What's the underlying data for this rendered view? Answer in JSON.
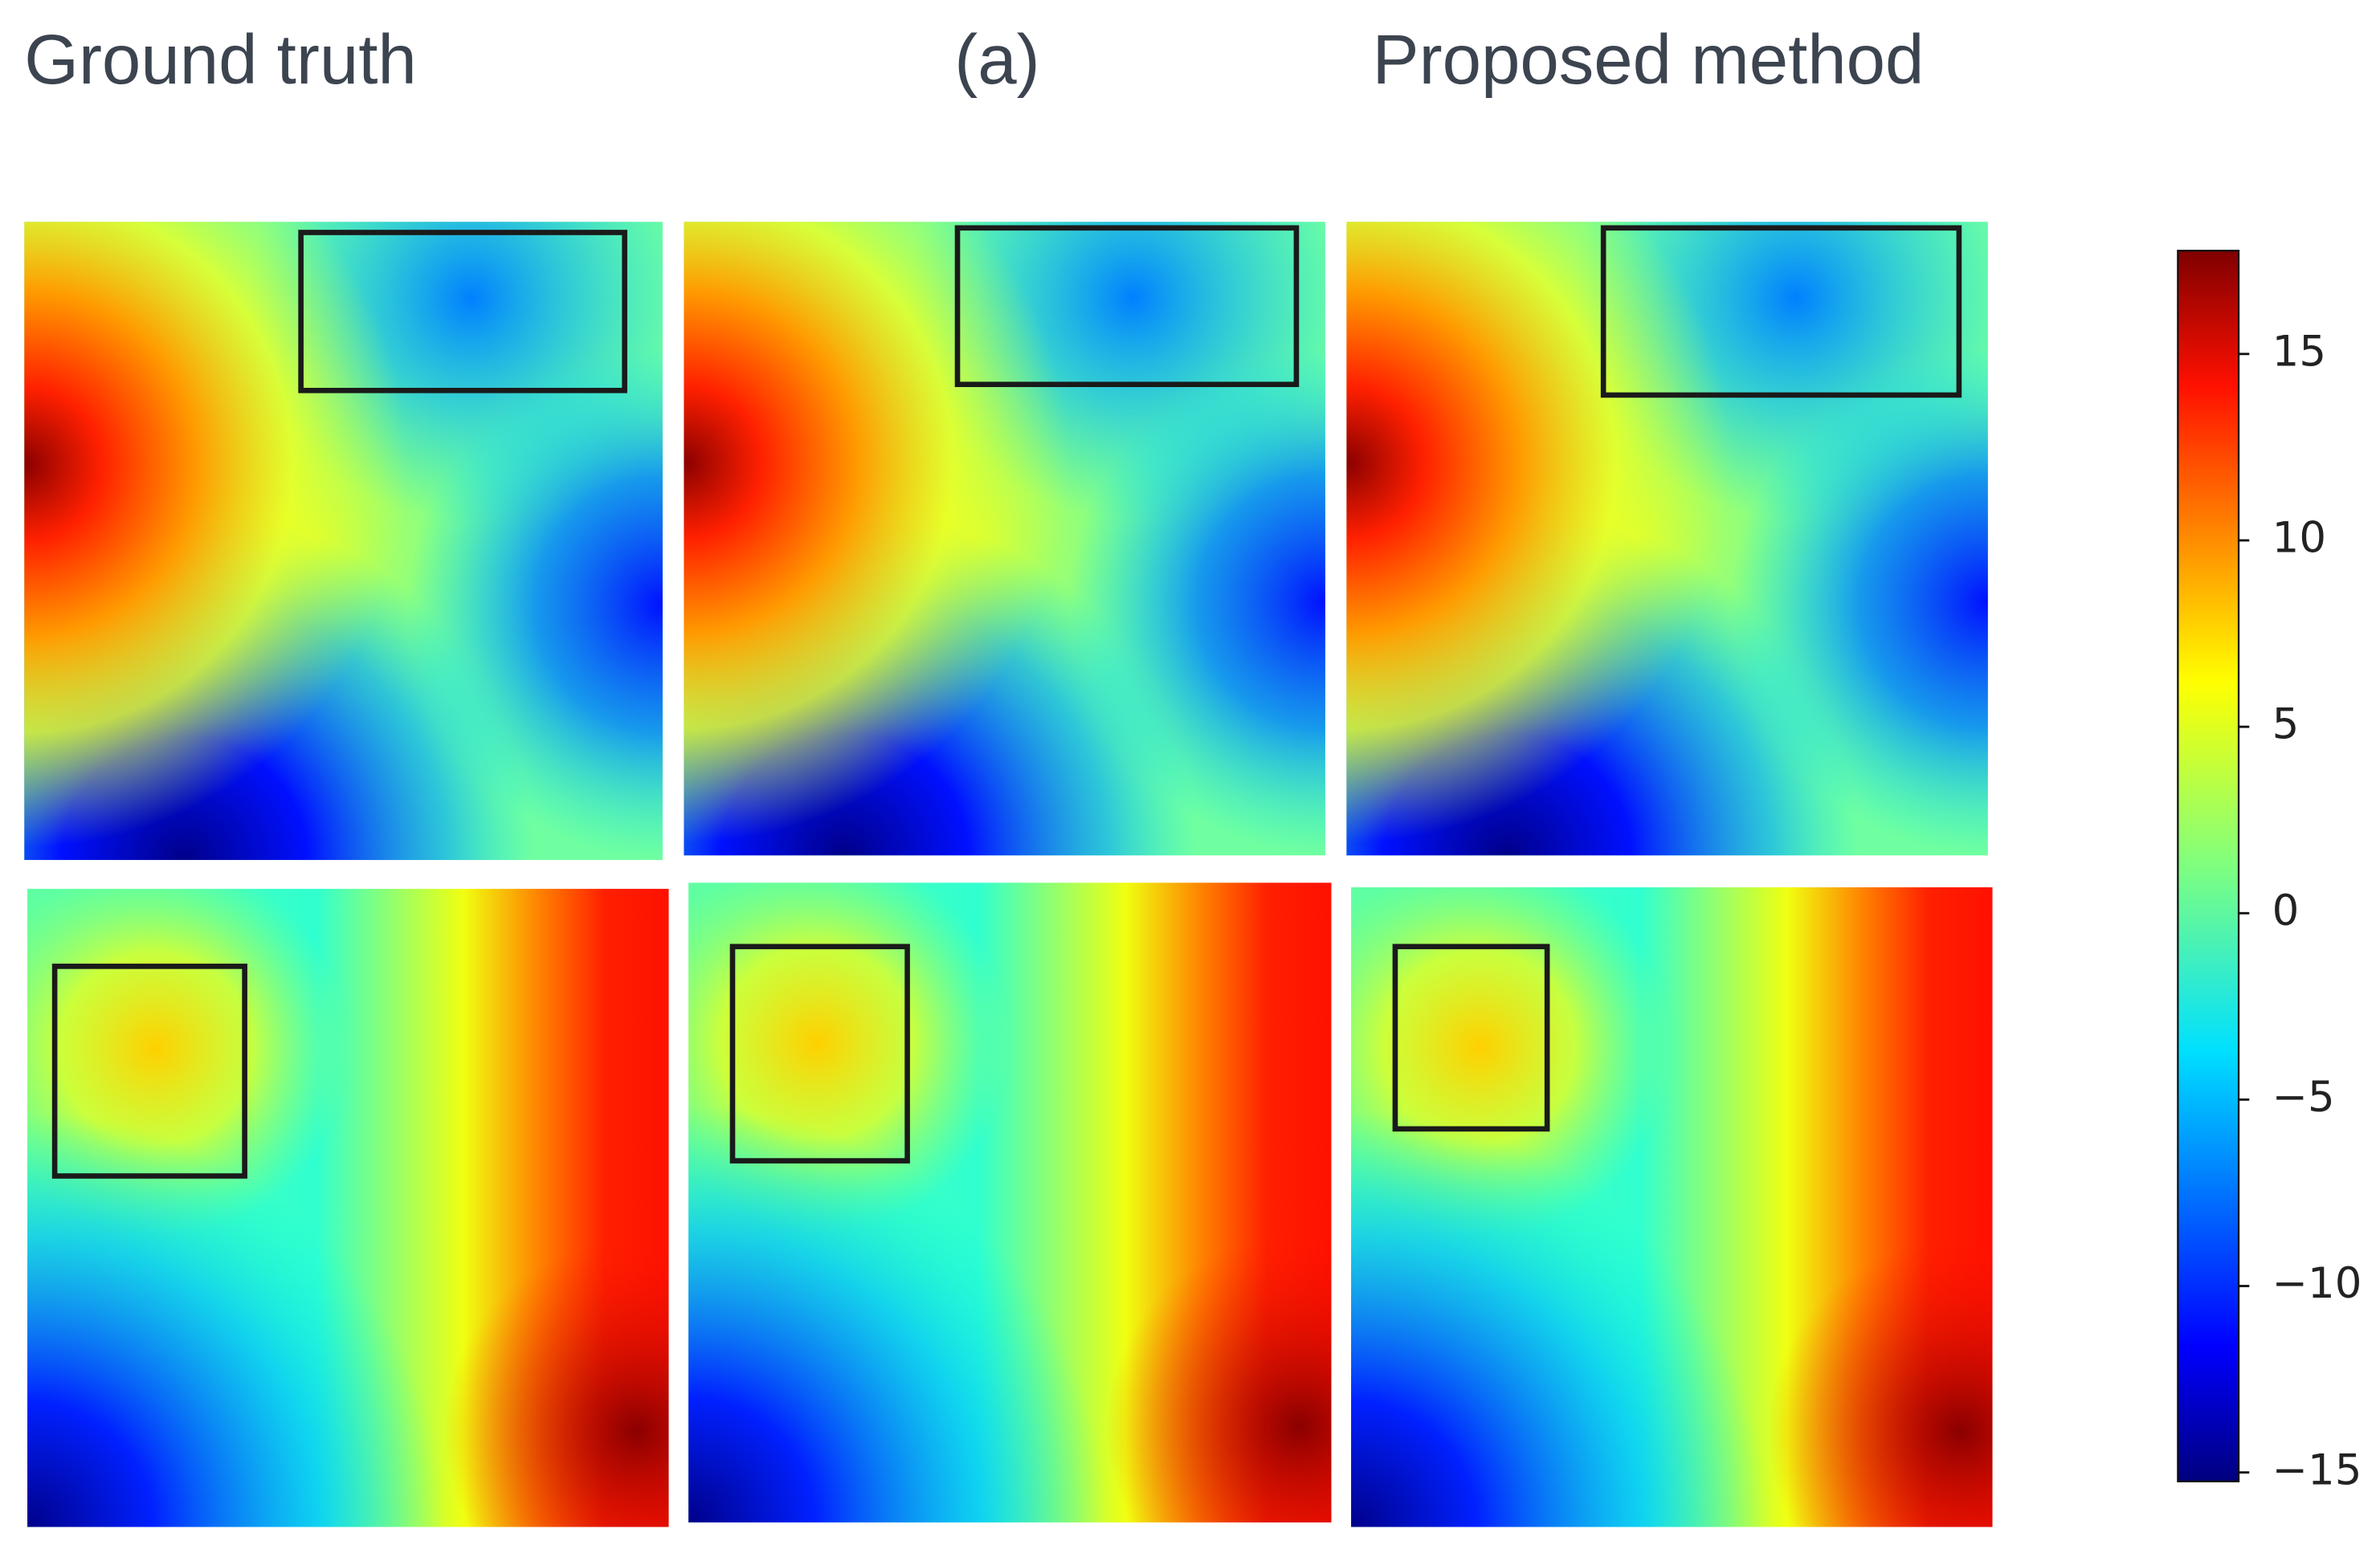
{
  "chart_data": {
    "type": "heatmap",
    "titles": [
      "Ground truth",
      "(a)",
      "Proposed method"
    ],
    "ylim": [
      -15.24,
      17.77
    ],
    "yticks": [
      {
        "value": -15,
        "label": "−15"
      },
      {
        "value": -10,
        "label": "−10"
      },
      {
        "value": -5,
        "label": "−5"
      },
      0,
      5,
      10,
      15
    ]
  }
}
